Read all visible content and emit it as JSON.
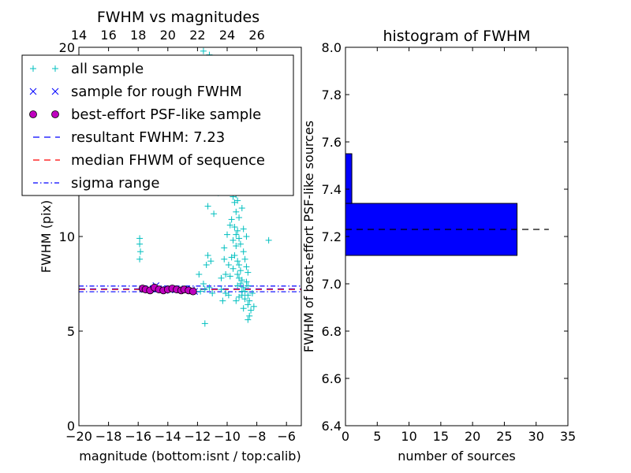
{
  "chart_data": [
    {
      "type": "scatter",
      "title": "FWHM vs magnitudes",
      "xlabel": "magnitude (bottom:isnt / top:calib)",
      "ylabel": "FWHM (pix)",
      "xlim": [
        -20,
        -5
      ],
      "ylim": [
        0,
        20
      ],
      "x_ticks": [
        -20,
        -18,
        -16,
        -14,
        -12,
        -10,
        -8,
        -6
      ],
      "x_tick_labels": [
        "−20",
        "−18",
        "−16",
        "−14",
        "−12",
        "−10",
        "−8",
        "−6"
      ],
      "y_ticks": [
        0,
        5,
        10,
        20
      ],
      "y_tick_labels": [
        "0",
        "5",
        "10",
        "20"
      ],
      "top_axis": {
        "ticks": [
          14,
          16,
          18,
          20,
          22,
          24,
          26
        ],
        "tick_labels": [
          "14",
          "16",
          "18",
          "20",
          "22",
          "24",
          "26"
        ],
        "offset": 34
      },
      "legend": {
        "placement": "upper-left",
        "entries": [
          {
            "label": "all sample",
            "marker": "plus",
            "color": "#00bfbf"
          },
          {
            "label": "sample for rough FWHM",
            "marker": "x",
            "color": "#0000ff"
          },
          {
            "label": "best-effort PSF-like sample",
            "marker": "circle",
            "color": "#bf00bf"
          },
          {
            "label": "resultant FWHM: 7.23",
            "marker": "dashed-line",
            "color": "#0000ff"
          },
          {
            "label": "median FHWM of sequence",
            "marker": "dashed-line",
            "color": "#ff0000"
          },
          {
            "label": "sigma range",
            "marker": "dashdot-line",
            "color": "#0000ff"
          }
        ]
      },
      "series": [
        {
          "name": "all sample",
          "marker": "plus",
          "color": "#00bfbf",
          "points": [
            [
              -15.9,
              9.9
            ],
            [
              -15.9,
              9.6
            ],
            [
              -15.85,
              9.2
            ],
            [
              -15.9,
              8.8
            ],
            [
              -11.5,
              5.4
            ],
            [
              -11.8,
              7.1
            ],
            [
              -11.5,
              7.2
            ],
            [
              -11.2,
              7.3
            ],
            [
              -11.0,
              7.0
            ],
            [
              -11.9,
              8.0
            ],
            [
              -11.6,
              7.5
            ],
            [
              -11.4,
              8.5
            ],
            [
              -11.3,
              9.0
            ],
            [
              -11.1,
              8.7
            ],
            [
              -11.6,
              19.8
            ],
            [
              -11.2,
              19.6
            ],
            [
              -11.0,
              19.4
            ],
            [
              -11.4,
              18.7
            ],
            [
              -11.0,
              18.9
            ],
            [
              -10.7,
              19.0
            ],
            [
              -11.3,
              11.6
            ],
            [
              -10.9,
              11.2
            ],
            [
              -10.6,
              12.3
            ],
            [
              -10.4,
              13.0
            ],
            [
              -10.6,
              14.0
            ],
            [
              -10.1,
              16.1
            ],
            [
              -9.9,
              15.6
            ],
            [
              -9.9,
              14.6
            ],
            [
              -9.7,
              14.9
            ],
            [
              -10.2,
              9.4
            ],
            [
              -10.0,
              10.1
            ],
            [
              -10.2,
              8.8
            ],
            [
              -9.9,
              8.5
            ],
            [
              -10.1,
              8.0
            ],
            [
              -10.4,
              7.8
            ],
            [
              -9.6,
              12.1
            ],
            [
              -9.5,
              11.8
            ],
            [
              -9.4,
              12.2
            ],
            [
              -9.3,
              11.9
            ],
            [
              -9.4,
              11.3
            ],
            [
              -9.2,
              11.0
            ],
            [
              -9.5,
              10.5
            ],
            [
              -9.4,
              10.1
            ],
            [
              -9.3,
              10.3
            ],
            [
              -9.2,
              9.9
            ],
            [
              -9.1,
              9.6
            ],
            [
              -9.4,
              9.5
            ],
            [
              -9.5,
              9.0
            ],
            [
              -9.3,
              8.7
            ],
            [
              -9.2,
              8.5
            ],
            [
              -9.1,
              8.2
            ],
            [
              -9.3,
              8.0
            ],
            [
              -9.2,
              7.8
            ],
            [
              -9.0,
              7.7
            ],
            [
              -9.1,
              7.5
            ],
            [
              -9.3,
              7.4
            ],
            [
              -8.9,
              7.3
            ],
            [
              -8.8,
              7.1
            ],
            [
              -9.0,
              6.9
            ],
            [
              -9.2,
              6.8
            ],
            [
              -8.8,
              6.7
            ],
            [
              -8.6,
              6.9
            ],
            [
              -9.4,
              6.6
            ],
            [
              -8.6,
              6.4
            ],
            [
              -8.9,
              6.2
            ],
            [
              -8.4,
              6.1
            ],
            [
              -8.2,
              6.3
            ],
            [
              -8.5,
              5.8
            ],
            [
              -8.6,
              5.6
            ],
            [
              -8.9,
              9.2
            ],
            [
              -8.8,
              8.8
            ],
            [
              -8.7,
              8.4
            ],
            [
              -8.6,
              8.1
            ],
            [
              -8.9,
              10.4
            ],
            [
              -8.7,
              10.0
            ],
            [
              -9.0,
              11.5
            ],
            [
              -9.1,
              12.8
            ],
            [
              -9.6,
              13.4
            ],
            [
              -9.8,
              13.8
            ],
            [
              -9.5,
              13.0
            ],
            [
              -9.7,
              10.9
            ],
            [
              -9.8,
              10.6
            ],
            [
              -9.6,
              9.8
            ],
            [
              -9.7,
              8.9
            ],
            [
              -9.6,
              8.3
            ],
            [
              -9.8,
              7.9
            ],
            [
              -10.4,
              7.2
            ],
            [
              -10.1,
              7.0
            ],
            [
              -9.9,
              6.9
            ],
            [
              -10.3,
              6.6
            ],
            [
              -7.2,
              9.8
            ],
            [
              -8.6,
              7.4
            ],
            [
              -8.3,
              7.0
            ],
            [
              -8.5,
              6.6
            ],
            [
              -9.0,
              7.1
            ],
            [
              -8.7,
              7.6
            ],
            [
              -9.2,
              18.5
            ],
            [
              -9.4,
              17.2
            ]
          ]
        },
        {
          "name": "sample for rough FWHM",
          "marker": "x",
          "color": "#0000ff",
          "points": [
            [
              -15.6,
              7.2
            ],
            [
              -15.3,
              7.25
            ],
            [
              -14.8,
              7.4
            ],
            [
              -14.5,
              7.2
            ],
            [
              -14.2,
              7.15
            ],
            [
              -13.8,
              7.2
            ],
            [
              -13.5,
              7.18
            ],
            [
              -13.1,
              7.2
            ],
            [
              -12.8,
              7.15
            ],
            [
              -12.4,
              7.18
            ],
            [
              -12.2,
              7.1
            ]
          ]
        },
        {
          "name": "best-effort PSF-like sample",
          "marker": "circle",
          "color": "#bf00bf",
          "points": [
            [
              -15.7,
              7.25
            ],
            [
              -15.5,
              7.2
            ],
            [
              -15.2,
              7.15
            ],
            [
              -14.9,
              7.3
            ],
            [
              -14.6,
              7.2
            ],
            [
              -14.3,
              7.15
            ],
            [
              -14.0,
              7.2
            ],
            [
              -13.7,
              7.25
            ],
            [
              -13.4,
              7.2
            ],
            [
              -13.1,
              7.15
            ],
            [
              -12.9,
              7.2
            ],
            [
              -12.6,
              7.15
            ],
            [
              -12.3,
              7.1
            ]
          ]
        }
      ],
      "hlines": [
        {
          "name": "resultant FWHM: 7.23",
          "y": 7.23,
          "style": "dashed",
          "color": "#0000ff"
        },
        {
          "name": "median FHWM of sequence",
          "y": 7.2,
          "style": "dashed",
          "color": "#ff0000"
        },
        {
          "name": "sigma range",
          "y": 7.38,
          "style": "dashdot",
          "color": "#0000ff"
        },
        {
          "name": "sigma range",
          "y": 7.08,
          "style": "dashdot",
          "color": "#0000ff"
        }
      ]
    },
    {
      "type": "bar",
      "orientation": "horizontal",
      "title": "histogram of FWHM",
      "xlabel": "number of sources",
      "ylabel": "FWHM of best-effort PSF-like sources",
      "xlim": [
        0,
        35
      ],
      "ylim": [
        6.4,
        8.0
      ],
      "x_ticks": [
        0,
        5,
        10,
        15,
        20,
        25,
        30,
        35
      ],
      "x_tick_labels": [
        "0",
        "5",
        "10",
        "15",
        "20",
        "25",
        "30",
        "35"
      ],
      "y_ticks": [
        6.4,
        6.6,
        6.8,
        7.0,
        7.2,
        7.4,
        7.6,
        7.8,
        8.0
      ],
      "y_tick_labels": [
        "6.4",
        "6.6",
        "6.8",
        "7.0",
        "7.2",
        "7.4",
        "7.6",
        "7.8",
        "8.0"
      ],
      "bars": [
        {
          "y0": 7.12,
          "y1": 7.34,
          "value": 27,
          "color": "#0000ff"
        },
        {
          "y0": 7.34,
          "y1": 7.55,
          "value": 1,
          "color": "#0000ff"
        }
      ],
      "hline": {
        "y": 7.23,
        "x0": 0,
        "x1": 32,
        "style": "dashed",
        "color": "#000000"
      }
    }
  ]
}
